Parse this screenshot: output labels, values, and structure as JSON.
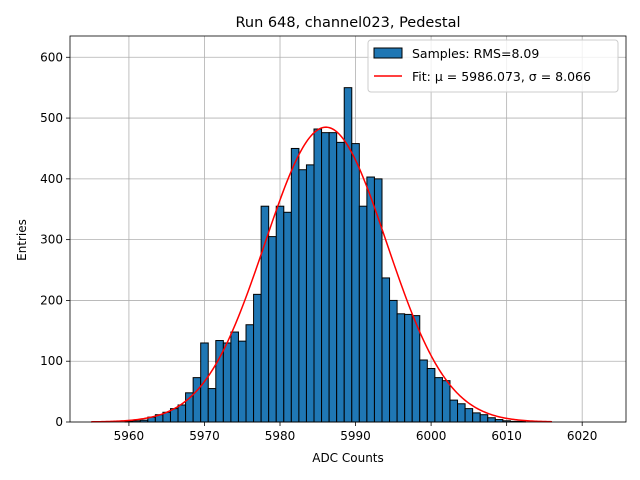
{
  "chart_data": {
    "type": "bar",
    "title": "Run 648, channel023, Pedestal",
    "xlabel": "ADC Counts",
    "ylabel": "Entries",
    "xlim": [
      5952.2,
      6025.8
    ],
    "ylim": [
      0,
      635
    ],
    "xticks": [
      5960,
      5970,
      5980,
      5990,
      6000,
      6010,
      6020
    ],
    "yticks": [
      0,
      100,
      200,
      300,
      400,
      500,
      600
    ],
    "grid": true,
    "legend_position": "top-right",
    "bin_width": 1,
    "bins": {
      "x": [
        5955,
        5956,
        5957,
        5958,
        5959,
        5960,
        5961,
        5962,
        5963,
        5964,
        5965,
        5966,
        5967,
        5968,
        5969,
        5970,
        5971,
        5972,
        5973,
        5974,
        5975,
        5976,
        5977,
        5978,
        5979,
        5980,
        5981,
        5982,
        5983,
        5984,
        5985,
        5986,
        5987,
        5988,
        5989,
        5990,
        5991,
        5992,
        5993,
        5994,
        5995,
        5996,
        5997,
        5998,
        5999,
        6000,
        6001,
        6002,
        6003,
        6004,
        6005,
        6006,
        6007,
        6008,
        6009,
        6010,
        6011,
        6012,
        6013,
        6014,
        6015
      ],
      "values": [
        0,
        0,
        0,
        0,
        0,
        1,
        2,
        3,
        8,
        12,
        16,
        22,
        28,
        48,
        73,
        130,
        55,
        134,
        130,
        148,
        133,
        160,
        210,
        355,
        305,
        355,
        345,
        450,
        415,
        423,
        482,
        476,
        476,
        460,
        550,
        458,
        355,
        403,
        400,
        237,
        200,
        178,
        177,
        175,
        102,
        88,
        73,
        68,
        36,
        30,
        22,
        15,
        12,
        7,
        4,
        2,
        1,
        1,
        0,
        0,
        0
      ]
    },
    "fit": {
      "mu": 5986.073,
      "sigma": 8.066,
      "amplitude": 485,
      "x_range": [
        5955,
        6016
      ]
    },
    "legend": [
      {
        "label": "Samples: RMS=8.09",
        "kind": "patch"
      },
      {
        "label": "Fit: μ = 5986.073, σ = 8.066",
        "kind": "line"
      }
    ],
    "colors": {
      "bar_fill": "#1f77b4",
      "bar_edge": "#000000",
      "fit_line": "#ff0000",
      "grid": "#b0b0b0"
    }
  }
}
